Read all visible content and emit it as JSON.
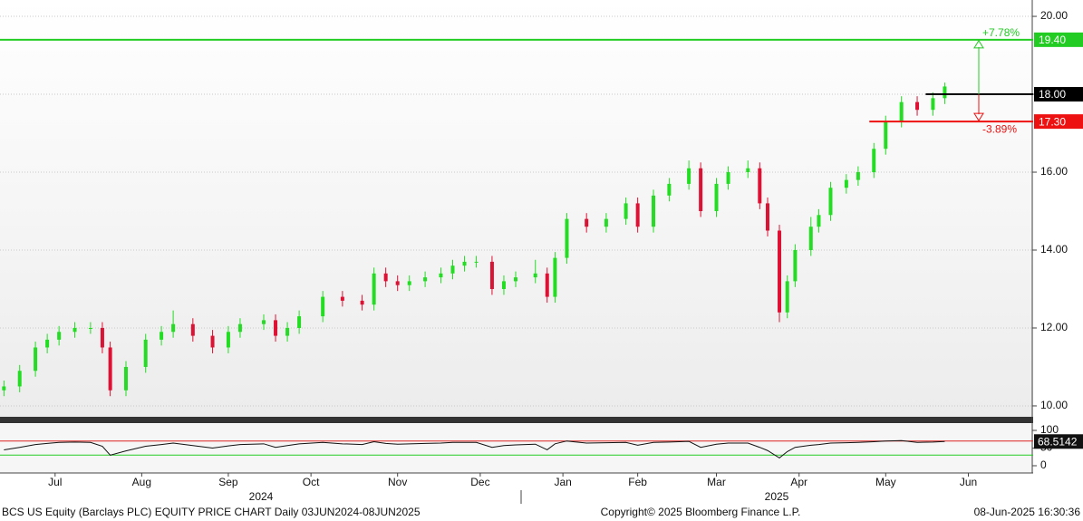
{
  "chart_data": [
    {
      "type": "candlestick",
      "up_color": "#22dd22",
      "down_color": "#dd1133",
      "x": [
        1,
        5,
        9,
        12,
        15,
        19,
        23,
        26,
        28,
        32,
        37,
        41,
        44,
        49,
        54,
        58,
        61,
        67,
        70,
        73,
        76,
        82,
        87,
        92,
        95,
        98,
        101,
        104,
        108,
        112,
        115,
        118,
        121,
        125,
        128,
        131,
        136,
        139,
        141,
        144,
        149,
        154,
        159,
        162,
        166,
        170,
        175,
        178,
        182,
        185,
        190,
        193,
        195,
        198,
        200,
        202,
        206,
        208,
        211,
        215,
        218,
        222,
        225,
        229,
        233,
        237,
        240
      ],
      "open": [
        10.4,
        10.5,
        10.9,
        11.5,
        11.7,
        11.9,
        12.0,
        12.0,
        11.5,
        10.4,
        11.0,
        11.7,
        11.9,
        12.1,
        11.8,
        11.5,
        11.9,
        12.1,
        12.2,
        11.8,
        12.0,
        12.3,
        12.8,
        12.7,
        12.6,
        13.4,
        13.2,
        13.1,
        13.2,
        13.3,
        13.4,
        13.6,
        13.7,
        13.7,
        13.0,
        13.2,
        13.3,
        13.4,
        12.8,
        13.8,
        14.8,
        14.6,
        14.8,
        15.2,
        14.6,
        15.4,
        15.7,
        16.1,
        15.0,
        15.7,
        16.0,
        16.1,
        15.2,
        14.5,
        12.4,
        13.2,
        14.0,
        14.6,
        14.9,
        15.6,
        15.8,
        16.0,
        16.6,
        17.3,
        17.8,
        17.6,
        17.9
      ],
      "close": [
        10.5,
        10.9,
        11.5,
        11.7,
        11.9,
        12.0,
        12.0,
        11.5,
        10.4,
        11.0,
        11.7,
        11.9,
        12.1,
        11.8,
        11.5,
        11.9,
        12.1,
        12.2,
        11.8,
        12.0,
        12.3,
        12.8,
        12.7,
        12.6,
        13.4,
        13.2,
        13.1,
        13.2,
        13.3,
        13.4,
        13.6,
        13.7,
        13.7,
        13.0,
        13.2,
        13.3,
        13.4,
        12.8,
        13.8,
        14.8,
        14.6,
        14.8,
        15.2,
        14.6,
        15.4,
        15.7,
        16.1,
        15.0,
        15.7,
        16.0,
        16.1,
        15.2,
        14.5,
        12.4,
        13.2,
        14.0,
        14.6,
        14.9,
        15.6,
        15.8,
        16.0,
        16.6,
        17.3,
        17.8,
        17.6,
        17.9,
        18.2
      ],
      "high": [
        10.65,
        11.05,
        11.65,
        11.85,
        12.05,
        12.15,
        12.15,
        12.15,
        11.65,
        11.15,
        11.85,
        12.05,
        12.45,
        12.25,
        11.95,
        12.05,
        12.25,
        12.35,
        12.35,
        12.15,
        12.45,
        12.95,
        12.95,
        12.85,
        13.55,
        13.55,
        13.35,
        13.35,
        13.45,
        13.55,
        13.75,
        13.85,
        13.85,
        13.85,
        13.35,
        13.45,
        13.75,
        13.55,
        13.95,
        14.95,
        14.95,
        14.95,
        15.35,
        15.35,
        15.55,
        15.85,
        16.3,
        16.25,
        15.85,
        16.15,
        16.3,
        16.25,
        15.35,
        14.65,
        13.35,
        14.15,
        14.85,
        15.05,
        15.75,
        15.95,
        16.15,
        16.75,
        17.45,
        17.95,
        17.95,
        18.05,
        18.3
      ],
      "low": [
        10.25,
        10.35,
        10.75,
        11.35,
        11.55,
        11.75,
        11.85,
        11.35,
        10.25,
        10.25,
        10.85,
        11.55,
        11.75,
        11.65,
        11.35,
        11.35,
        11.75,
        11.95,
        11.65,
        11.65,
        11.85,
        12.15,
        12.55,
        12.45,
        12.45,
        13.05,
        12.95,
        12.95,
        13.05,
        13.15,
        13.25,
        13.45,
        13.55,
        12.85,
        12.85,
        13.05,
        13.15,
        12.65,
        12.65,
        13.65,
        14.45,
        14.45,
        14.65,
        14.45,
        14.45,
        15.25,
        15.55,
        14.85,
        14.85,
        15.55,
        15.85,
        15.05,
        14.35,
        12.15,
        12.25,
        13.05,
        13.85,
        14.45,
        14.75,
        15.45,
        15.65,
        15.85,
        16.45,
        17.15,
        17.45,
        17.45,
        17.75
      ],
      "xlim": [
        0,
        262
      ],
      "xticks": [
        {
          "value": 14,
          "label": "Jul"
        },
        {
          "value": 36,
          "label": "Aug"
        },
        {
          "value": 58,
          "label": "Sep"
        },
        {
          "value": 79,
          "label": "Oct"
        },
        {
          "value": 101,
          "label": "Nov"
        },
        {
          "value": 122,
          "label": "Dec"
        },
        {
          "value": 143,
          "label": "Jan"
        },
        {
          "value": 162,
          "label": "Feb"
        },
        {
          "value": 182,
          "label": "Mar"
        },
        {
          "value": 203,
          "label": "Apr"
        },
        {
          "value": 225,
          "label": "May"
        },
        {
          "value": 246,
          "label": "Jun"
        }
      ],
      "year_labels": [
        "2024",
        "2025"
      ],
      "ylim": [
        9.72,
        20.42
      ],
      "yticks": [
        {
          "value": 10,
          "label": "10.00"
        },
        {
          "value": 12,
          "label": "12.00"
        },
        {
          "value": 14,
          "label": "14.00"
        },
        {
          "value": 16,
          "label": "16.00"
        },
        {
          "value": 18,
          "label": "18.00"
        },
        {
          "value": 20,
          "label": "20.00"
        }
      ],
      "grid": true,
      "reference_lines": [
        {
          "value": 19.4,
          "label": "19.40",
          "color": "#22cc22"
        },
        {
          "value": 18,
          "label": "18.00",
          "color": "#000000"
        },
        {
          "value": 17.3,
          "label": "17.30",
          "color": "#ee1111"
        }
      ],
      "annotations": [
        "+7.78%",
        "-3.89%"
      ],
      "footer": [
        "BCS US Equity (Barclays PLC) EQUITY PRICE CHART  Daily 03JUN2024-08JUN2025",
        "Copyright© 2025 Bloomberg Finance L.P.",
        "08-Jun-2025 16:30:36"
      ]
    },
    {
      "type": "line",
      "color": "#111111",
      "x": [
        1,
        5,
        9,
        12,
        15,
        19,
        23,
        26,
        28,
        32,
        37,
        41,
        44,
        49,
        54,
        58,
        61,
        67,
        70,
        73,
        76,
        82,
        87,
        92,
        95,
        98,
        101,
        104,
        108,
        112,
        115,
        118,
        121,
        125,
        128,
        131,
        136,
        139,
        141,
        144,
        149,
        154,
        159,
        162,
        166,
        170,
        175,
        178,
        182,
        185,
        190,
        193,
        195,
        198,
        200,
        202,
        206,
        208,
        211,
        215,
        218,
        222,
        225,
        229,
        233,
        237,
        240
      ],
      "values": [
        45,
        52,
        60,
        63,
        66,
        67,
        66,
        55,
        30,
        42,
        55,
        60,
        64,
        57,
        50,
        56,
        60,
        62,
        52,
        57,
        62,
        66,
        62,
        60,
        68,
        63,
        61,
        62,
        63,
        64,
        66,
        66,
        66,
        52,
        57,
        59,
        61,
        45,
        62,
        70,
        64,
        65,
        66,
        58,
        66,
        67,
        69,
        52,
        61,
        64,
        64,
        52,
        43,
        22,
        40,
        52,
        58,
        60,
        64,
        65,
        66,
        68,
        70,
        71,
        66,
        67,
        68.5142
      ],
      "xlim": [
        0,
        262
      ],
      "ylim": [
        0,
        100
      ],
      "yticks": [
        0,
        50,
        100
      ],
      "reference_lines": [
        {
          "value": 70,
          "color": "#dd2222"
        },
        {
          "value": 30,
          "color": "#22cc22"
        }
      ]
    }
  ]
}
